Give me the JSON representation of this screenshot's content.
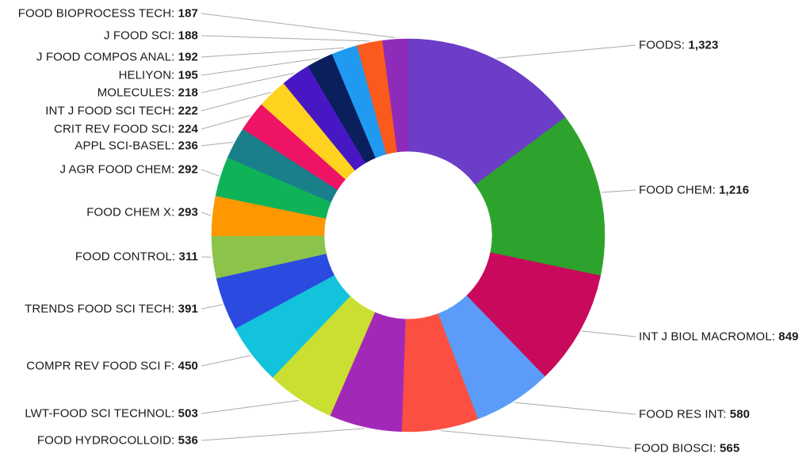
{
  "chart_data": {
    "type": "pie",
    "style": "donut",
    "title": "",
    "legend_position": "none",
    "labels_position": "outside-with-leader-lines",
    "background": "#FFFFFF",
    "leader_line_color": "#AAAAAA",
    "label_text_color": "#1A1A1A",
    "slices": [
      {
        "label": "FOODS",
        "value": 1323,
        "display_value": "1,323",
        "color": "#6C3EC8"
      },
      {
        "label": "FOOD CHEM",
        "value": 1216,
        "display_value": "1,216",
        "color": "#2DA32D"
      },
      {
        "label": "INT J BIOL MACROMOL",
        "value": 849,
        "display_value": "849",
        "color": "#C9095C"
      },
      {
        "label": "FOOD RES INT",
        "value": 580,
        "display_value": "580",
        "color": "#5A9CF8"
      },
      {
        "label": "FOOD BIOSCI",
        "value": 565,
        "display_value": "565",
        "color": "#FB4F42"
      },
      {
        "label": "FOOD HYDROCOLLOID",
        "value": 536,
        "display_value": "536",
        "color": "#A228B8"
      },
      {
        "label": "LWT-FOOD SCI TECHNOL",
        "value": 503,
        "display_value": "503",
        "color": "#CBDF32"
      },
      {
        "label": "COMPR REV FOOD SCI F",
        "value": 450,
        "display_value": "450",
        "color": "#12C3DB"
      },
      {
        "label": "TRENDS FOOD SCI TECH",
        "value": 391,
        "display_value": "391",
        "color": "#2B4BE0"
      },
      {
        "label": "FOOD CONTROL",
        "value": 311,
        "display_value": "311",
        "color": "#8CC44B"
      },
      {
        "label": "FOOD CHEM X",
        "value": 293,
        "display_value": "293",
        "color": "#FF9800"
      },
      {
        "label": "J AGR FOOD CHEM",
        "value": 292,
        "display_value": "292",
        "color": "#0EB357"
      },
      {
        "label": "APPL SCI-BASEL",
        "value": 236,
        "display_value": "236",
        "color": "#187F8B"
      },
      {
        "label": "CRIT REV FOOD SCI",
        "value": 224,
        "display_value": "224",
        "color": "#EE1365"
      },
      {
        "label": "INT J FOOD SCI TECH",
        "value": 222,
        "display_value": "222",
        "color": "#FFD21F"
      },
      {
        "label": "MOLECULES",
        "value": 218,
        "display_value": "218",
        "color": "#4717C4"
      },
      {
        "label": "HELIYON",
        "value": 195,
        "display_value": "195",
        "color": "#0A1F5C"
      },
      {
        "label": "J FOOD COMPOS ANAL",
        "value": 192,
        "display_value": "192",
        "color": "#1F9AF0"
      },
      {
        "label": "J FOOD SCI",
        "value": 188,
        "display_value": "188",
        "color": "#FA5A1C"
      },
      {
        "label": "FOOD BIOPROCESS TECH",
        "value": 187,
        "display_value": "187",
        "color": "#8E2BB8"
      }
    ]
  }
}
